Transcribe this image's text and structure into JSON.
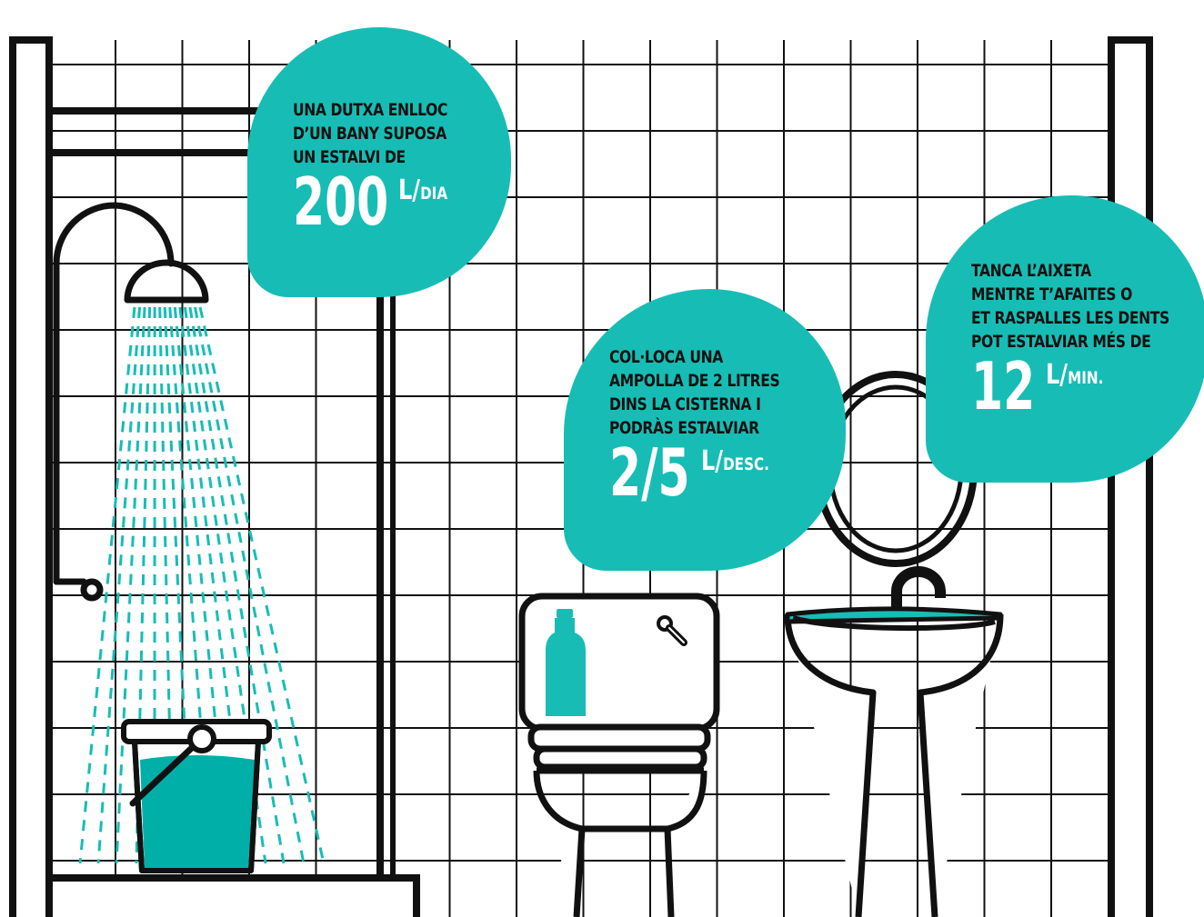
{
  "colors": {
    "accent": "#17bdb5",
    "accent_dark": "#00b0a8",
    "line": "#111111",
    "background": "#ffffff"
  },
  "shower_tip": {
    "lines": [
      "Una dutxa enlloc",
      "d’un bany suposa",
      "un estalvi de"
    ],
    "value": "200",
    "unit_main": "L/",
    "unit_sub": "dia"
  },
  "toilet_tip": {
    "lines": [
      "Col·loca una",
      "ampolla de 2 litres",
      "dins la cisterna i",
      "podràs estalviar"
    ],
    "value": "2/5",
    "unit_main": "L/",
    "unit_sub": "desc."
  },
  "tap_tip": {
    "lines": [
      "Tanca l’aixeta",
      "mentre t’afaites o",
      "et raspalles les dents",
      "pot estalviar més de"
    ],
    "value": "12",
    "unit_main": "L/",
    "unit_sub": "min."
  },
  "icons": [
    "shower-head-icon",
    "bucket-icon",
    "toilet-icon",
    "bottle-icon",
    "sink-icon",
    "faucet-icon",
    "mirror-icon"
  ]
}
